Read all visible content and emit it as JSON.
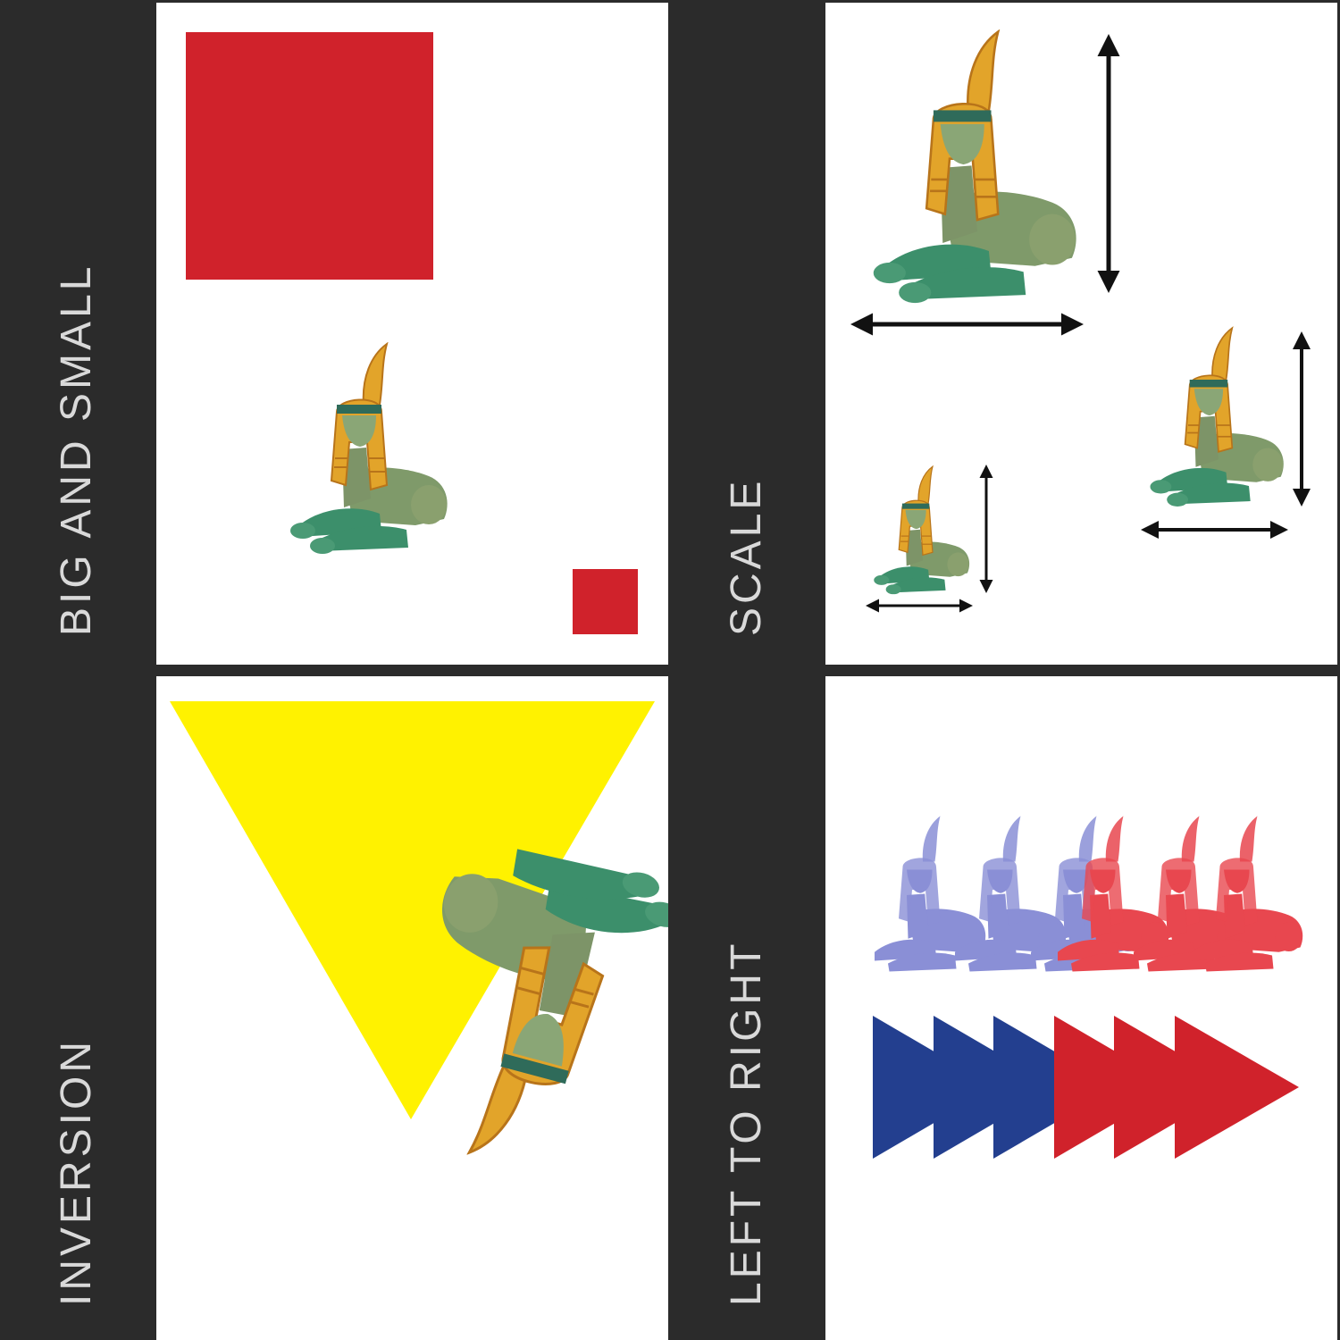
{
  "labels": {
    "big_and_small": "BIG AND SMALL",
    "scale": "SCALE",
    "inversion": "INVERSION",
    "left_to_right": "LEFT TO RIGHT"
  },
  "colors": {
    "background": "#2b2b2b",
    "label_text": "#d9d9d9",
    "red": "#d0222b",
    "yellow": "#fff200",
    "blue": "#233f8f",
    "sphinx_body": "#7f9a6a",
    "sphinx_green": "#3c8f6b",
    "sphinx_gold": "#e2a42a",
    "sphinx_blue_tint": "#8a8fd6",
    "sphinx_red_tint": "#e8474f"
  },
  "panels": [
    {
      "name": "big-and-small",
      "elements": [
        "large red square",
        "sphinx",
        "small red square"
      ]
    },
    {
      "name": "scale",
      "elements": [
        "large sphinx with dimension arrows",
        "medium sphinx with dimension arrows",
        "small sphinx with dimension arrows"
      ]
    },
    {
      "name": "inversion",
      "elements": [
        "yellow inverted triangle",
        "upside-down sphinx"
      ]
    },
    {
      "name": "left-to-right",
      "elements": [
        "three blue sphinxes",
        "three red sphinxes",
        "three blue arrowheads",
        "three red arrowheads"
      ]
    }
  ]
}
